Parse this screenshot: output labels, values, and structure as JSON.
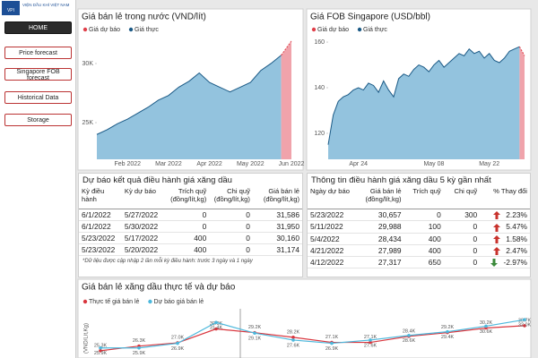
{
  "header": {
    "logo": "VPI",
    "org": "VIỆN DẦU KHÍ VIỆT NAM"
  },
  "nav": [
    "HOME",
    "Price forecast",
    "Singapore FOB forecast",
    "Historical Data",
    "Storage"
  ],
  "chart_data": [
    {
      "type": "area",
      "title": "Giá bán lẻ trong nước (VND/lít)",
      "categories": [
        null,
        null,
        null,
        "Feb 2022",
        null,
        null,
        null,
        "Mar 2022",
        null,
        null,
        null,
        "Apr 2022",
        null,
        null,
        null,
        "May 2022",
        null,
        null,
        null,
        "Jun 2022"
      ],
      "series": [
        {
          "name": "Giá dự báo",
          "color": "#e0404a",
          "values": [
            null,
            null,
            null,
            null,
            null,
            null,
            null,
            null,
            null,
            null,
            null,
            null,
            null,
            null,
            null,
            null,
            null,
            null,
            30700,
            31900
          ]
        },
        {
          "name": "Giá thực",
          "color": "#1b5a86",
          "values": [
            24000,
            24400,
            24900,
            25300,
            25800,
            26300,
            26900,
            27300,
            28000,
            28500,
            29200,
            28400,
            28000,
            27600,
            28000,
            28400,
            29400,
            30000,
            30700,
            null
          ]
        }
      ],
      "ylim": [
        21900,
        33100
      ],
      "yticks": [
        {
          "value": 25000,
          "label": "25K"
        },
        {
          "value": 30000,
          "label": "30K"
        }
      ]
    },
    {
      "type": "area",
      "title": "Giá FOB Singapore (USD/bbl)",
      "categories": [
        null,
        null,
        null,
        null,
        null,
        null,
        "Apr 24",
        null,
        null,
        null,
        null,
        null,
        null,
        null,
        null,
        null,
        null,
        null,
        null,
        null,
        null,
        "May 08",
        null,
        null,
        null,
        null,
        null,
        null,
        null,
        null,
        null,
        null,
        "May 22",
        null,
        null,
        null,
        null,
        null,
        null,
        null
      ],
      "series": [
        {
          "name": "Giá dự báo",
          "color": "#e0404a",
          "values": [
            null,
            null,
            null,
            null,
            null,
            null,
            null,
            null,
            null,
            null,
            null,
            null,
            null,
            null,
            null,
            null,
            null,
            null,
            null,
            null,
            null,
            null,
            null,
            null,
            null,
            null,
            null,
            null,
            null,
            null,
            null,
            null,
            null,
            null,
            null,
            null,
            null,
            null,
            158,
            154
          ]
        },
        {
          "name": "Giá thực",
          "color": "#1b5a86",
          "values": [
            115,
            128,
            134,
            136,
            137,
            139,
            140,
            139,
            142,
            141,
            138,
            143,
            139,
            136,
            144,
            146,
            145,
            148,
            150,
            149,
            147,
            150,
            152,
            149,
            151,
            153,
            155,
            154,
            157,
            155,
            156,
            153,
            155,
            152,
            151,
            153,
            156,
            157,
            158,
            null
          ]
        }
      ],
      "ylim": [
        108.6,
        166.7
      ],
      "yticks": [
        120,
        140,
        160
      ]
    },
    {
      "type": "line",
      "title": "Giá bán lẻ xăng dầu thực tế và dự báo",
      "ylabel": "(VND/Lít,Kg)",
      "categories": [
        null,
        null,
        null,
        null,
        null,
        null,
        null,
        null,
        null,
        null,
        null,
        null
      ],
      "series": [
        {
          "name": "Thực tế giá bán lẻ",
          "color": "#d9363e",
          "values": [
            25300,
            26300,
            27000,
            30000,
            29200,
            28200,
            27100,
            27100,
            28400,
            29200,
            30200,
            30700
          ],
          "value_labels": [
            "25.3K",
            "26.3K",
            "27.0K",
            "30.0K",
            "29.2K",
            "28.2K",
            "27.1K",
            "27.1K",
            "28.4K",
            "29.2K",
            "30.2K",
            "30.7K"
          ]
        },
        {
          "name": "Dự báo giá bán lẻ",
          "color": "#4cb8dc",
          "values": [
            25900,
            25900,
            26900,
            31400,
            29100,
            27600,
            26900,
            27600,
            28600,
            29400,
            30600,
            32000
          ],
          "value_labels": [
            "25.9K",
            "25.9K",
            "26.9K",
            "31.4K",
            "29.1K",
            "27.6K",
            "26.9K",
            "27.6K",
            "28.6K",
            "29.4K",
            "30.6K",
            "32.0K"
          ]
        }
      ],
      "ylim": [
        24500,
        33000
      ]
    }
  ],
  "tables": [
    {
      "title": "Dự báo kết quả điều hành giá xăng dầu",
      "columns": [
        "Kỳ điều hành",
        "Kỳ dự báo",
        "Trích quỹ (đồng/lít,kg)",
        "Chi quỹ (đồng/lít,kg)",
        "Giá bán lẻ (đồng/lít,kg)"
      ],
      "rows": [
        [
          "6/1/2022",
          "5/27/2022",
          "0",
          "0",
          "31,586"
        ],
        [
          "6/1/2022",
          "5/30/2022",
          "0",
          "0",
          "31,950"
        ],
        [
          "5/23/2022",
          "5/17/2022",
          "400",
          "0",
          "30,160"
        ],
        [
          "5/23/2022",
          "5/20/2022",
          "400",
          "0",
          "31,174"
        ]
      ],
      "note": "*Dữ liệu được cập nhập 2 lần mỗi kỳ điều hành: trước 3 ngày và 1 ngày"
    },
    {
      "title": "Thông tin điều hành giá xăng dầu 5 kỳ gần nhất",
      "columns": [
        "Ngày dự báo",
        "Giá bán lẻ (đồng/lít,kg)",
        "Trích quỹ",
        "Chi quỹ",
        "% Thay đổi"
      ],
      "rows": [
        [
          "5/23/2022",
          "30,657",
          "0",
          "300",
          "2.23%"
        ],
        [
          "5/11/2022",
          "29,988",
          "100",
          "0",
          "5.47%"
        ],
        [
          "5/4/2022",
          "28,434",
          "400",
          "0",
          "1.58%"
        ],
        [
          "4/21/2022",
          "27,989",
          "400",
          "0",
          "2.47%"
        ],
        [
          "4/12/2022",
          "27,317",
          "650",
          "0",
          "-2.97%"
        ]
      ]
    }
  ]
}
